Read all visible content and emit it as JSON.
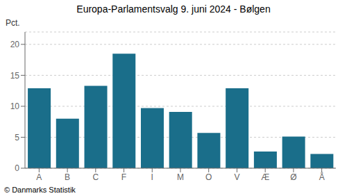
{
  "chart_data": {
    "type": "bar",
    "title": "Europa-Parlamentsvalg 9. juni 2024 - Bølgen",
    "ylabel": "Pct.",
    "footer": "© Danmarks Statistik",
    "categories": [
      "A",
      "B",
      "C",
      "F",
      "I",
      "M",
      "O",
      "V",
      "Æ",
      "Ø",
      "Å"
    ],
    "values": [
      12.9,
      8.0,
      13.3,
      18.5,
      9.7,
      9.1,
      5.7,
      12.9,
      2.7,
      5.1,
      2.3
    ],
    "color": "#1a6e8a",
    "ylim": [
      0,
      22
    ],
    "yticks": [
      0,
      5,
      10,
      15,
      20
    ],
    "grid": true
  }
}
